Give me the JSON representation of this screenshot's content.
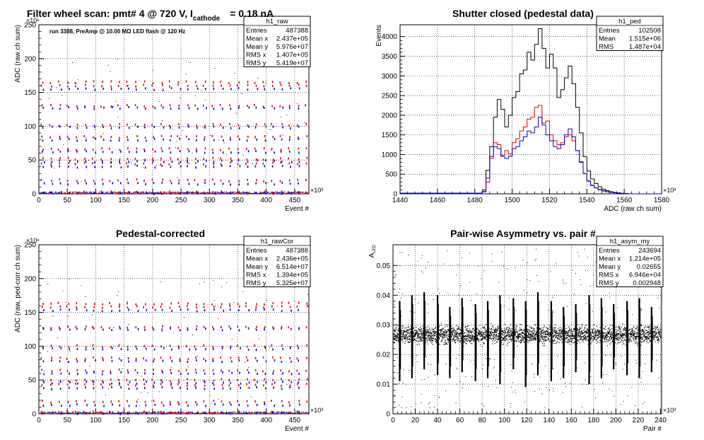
{
  "chart_data": [
    {
      "type": "scatter",
      "title": "Filter wheel scan: pmt#   4 @   720 V, I",
      "title_subscript": "cathode",
      "title_suffix": "= 0.18 nA",
      "annotation": "run 3388, PreAmp @ 10.00 MΩ LED flash @  120 Hz",
      "xlabel": "Event #",
      "ylabel": "ADC (raw ch sum)",
      "x_exponent": "×10³",
      "y_exponent": "×10⁶",
      "xlim": [
        0,
        475
      ],
      "ylim": [
        0,
        250
      ],
      "x_ticks": [
        0,
        50,
        100,
        150,
        200,
        250,
        300,
        350,
        400,
        450
      ],
      "y_ticks": [
        0,
        50,
        100,
        150,
        200,
        250
      ],
      "grid": true,
      "stats": {
        "name": "h1_raw",
        "rows": [
          [
            "Entries",
            "487388"
          ],
          [
            "Mean x",
            "2.437e+05"
          ],
          [
            "Mean y",
            "5.976e+07"
          ],
          [
            "RMS x",
            "1.407e+05"
          ],
          [
            "RMS y",
            "5.419e+07"
          ]
        ]
      },
      "marker_levels": {
        "red": [
          165,
          160,
          130,
          102,
          84,
          66,
          52,
          45,
          20,
          2
        ],
        "blue": [
          155,
          127,
          98,
          80,
          62,
          48,
          40,
          15,
          1
        ]
      },
      "colors": {
        "red": "#e00000",
        "blue": "#0000dd",
        "black": "#000000"
      }
    },
    {
      "type": "histogram",
      "title": "Shutter closed (pedestal data)",
      "xlabel": "ADC (raw ch sum)",
      "ylabel": "Events",
      "x_exponent": "×10³",
      "xlim": [
        1440,
        1580
      ],
      "ylim": [
        0,
        4300
      ],
      "x_ticks": [
        1440,
        1460,
        1480,
        1500,
        1520,
        1540,
        1560,
        1580
      ],
      "y_ticks": [
        0,
        500,
        1000,
        1500,
        2000,
        2500,
        3000,
        3500,
        4000
      ],
      "grid": true,
      "stats": {
        "name": "h1_ped",
        "rows": [
          [
            "Entries",
            "102508"
          ],
          [
            "Mean",
            "1.515e+06"
          ],
          [
            "RMS",
            "1.487e+04"
          ]
        ]
      },
      "series": [
        {
          "color": "#000000",
          "x": [
            1484,
            1486,
            1488,
            1490,
            1492,
            1494,
            1496,
            1498,
            1500,
            1502,
            1504,
            1506,
            1508,
            1510,
            1512,
            1514,
            1516,
            1518,
            1520,
            1522,
            1524,
            1526,
            1528,
            1530,
            1532,
            1534,
            1536,
            1538,
            1540,
            1542,
            1544,
            1546,
            1548,
            1550,
            1552,
            1554,
            1556,
            1558,
            1560
          ],
          "y": [
            100,
            600,
            1200,
            1950,
            2400,
            2150,
            1700,
            2000,
            2450,
            2600,
            3050,
            3150,
            3600,
            3400,
            3800,
            4200,
            3700,
            3200,
            3550,
            3200,
            2450,
            2650,
            2950,
            3250,
            2800,
            2200,
            1550,
            950,
            580,
            380,
            260,
            180,
            120,
            80,
            55,
            35,
            25,
            15,
            10
          ]
        },
        {
          "color": "#dd0000",
          "x": [
            1484,
            1486,
            1488,
            1490,
            1492,
            1494,
            1496,
            1498,
            1500,
            1502,
            1504,
            1506,
            1508,
            1510,
            1512,
            1514,
            1516,
            1518,
            1520,
            1522,
            1524,
            1526,
            1528,
            1530,
            1532,
            1534,
            1536,
            1538,
            1540,
            1542,
            1544,
            1546,
            1548,
            1550,
            1552,
            1554,
            1556,
            1558,
            1560
          ],
          "y": [
            60,
            300,
            900,
            1300,
            1250,
            980,
            1100,
            1020,
            1300,
            1400,
            1600,
            1700,
            1900,
            1950,
            2200,
            2250,
            1800,
            1850,
            1500,
            1350,
            1250,
            1300,
            1450,
            1500,
            1350,
            1100,
            820,
            520,
            320,
            210,
            150,
            100,
            70,
            50,
            35,
            25,
            18,
            10,
            5
          ]
        },
        {
          "color": "#0000cc",
          "x": [
            1484,
            1486,
            1488,
            1490,
            1492,
            1494,
            1496,
            1498,
            1500,
            1502,
            1504,
            1506,
            1508,
            1510,
            1512,
            1514,
            1516,
            1518,
            1520,
            1522,
            1524,
            1526,
            1528,
            1530,
            1532,
            1534,
            1536,
            1538,
            1540,
            1542,
            1544,
            1546,
            1548,
            1550,
            1552,
            1554,
            1556,
            1558,
            1560
          ],
          "y": [
            50,
            400,
            950,
            1200,
            1150,
            950,
            900,
            960,
            1150,
            1200,
            1350,
            1450,
            1600,
            1550,
            1700,
            1950,
            1750,
            1500,
            1350,
            1200,
            1150,
            1250,
            1500,
            1650,
            1450,
            1100,
            800,
            520,
            330,
            220,
            150,
            110,
            80,
            55,
            40,
            28,
            20,
            12,
            5
          ]
        }
      ]
    },
    {
      "type": "scatter",
      "title": "Pedestal-corrected",
      "xlabel": "Event #",
      "ylabel": "ADC (raw, ped-corr ch sum)",
      "x_exponent": "×10³",
      "y_exponent": "×10⁶",
      "xlim": [
        0,
        475
      ],
      "ylim": [
        0,
        250
      ],
      "x_ticks": [
        0,
        50,
        100,
        150,
        200,
        250,
        300,
        350,
        400,
        450
      ],
      "y_ticks": [
        0,
        50,
        100,
        150,
        200,
        250
      ],
      "grid": true,
      "stats": {
        "name": "h1_rawCor",
        "rows": [
          [
            "Entries",
            "487388"
          ],
          [
            "Mean x",
            "2.436e+05"
          ],
          [
            "Mean y",
            "6.514e+07"
          ],
          [
            "RMS x",
            "1.394e+05"
          ],
          [
            "RMS y",
            "5.325e+07"
          ]
        ]
      },
      "marker_levels": {
        "red": [
          163,
          158,
          128,
          100,
          82,
          64,
          50,
          43,
          18,
          2
        ],
        "blue": [
          153,
          125,
          96,
          78,
          60,
          46,
          38,
          13,
          1
        ]
      },
      "colors": {
        "red": "#e00000",
        "blue": "#0000dd",
        "black": "#000000"
      }
    },
    {
      "type": "scatter",
      "title": "Pair-wise Asymmetry vs. pair #",
      "xlabel": "Pair #",
      "ylabel": "A",
      "ylabel_subscript": "LED",
      "x_exponent": "×10³",
      "xlim": [
        0,
        241
      ],
      "ylim": [
        0,
        0.057
      ],
      "x_ticks": [
        0,
        20,
        40,
        60,
        80,
        100,
        120,
        140,
        160,
        180,
        200,
        220,
        240
      ],
      "y_ticks": [
        0,
        0.01,
        0.02,
        0.03,
        0.04,
        0.05
      ],
      "y_tick_labels": [
        "0",
        "0.01",
        "0.02",
        "0.03",
        "0.04",
        "0.05"
      ],
      "grid": true,
      "stats": {
        "name": "h1_asym_my",
        "rows": [
          [
            "Entries",
            "243694"
          ],
          [
            "Mean x",
            "1.214e+05"
          ],
          [
            "Mean y",
            "0.02655"
          ],
          [
            "RMS x",
            "6.946e+04"
          ],
          [
            "RMS y",
            "0.002948"
          ]
        ]
      },
      "band_center": 0.0268,
      "band_halfwidth": 0.0022,
      "spike_x": [
        6,
        17,
        28,
        40,
        51,
        62,
        74,
        85,
        96,
        108,
        119,
        130,
        142,
        153,
        164,
        176,
        187,
        198,
        210,
        221,
        232
      ],
      "spike_top": [
        0.038,
        0.04,
        0.041,
        0.04,
        0.036,
        0.039,
        0.037,
        0.038,
        0.04,
        0.039,
        0.038,
        0.041,
        0.038,
        0.036,
        0.037,
        0.04,
        0.039,
        0.037,
        0.038,
        0.039,
        0.036
      ],
      "spike_bottom": [
        0.011,
        0.012,
        0.015,
        0.013,
        0.012,
        0.014,
        0.011,
        0.012,
        0.01,
        0.015,
        0.009,
        0.013,
        0.011,
        0.012,
        0.014,
        0.01,
        0.012,
        0.015,
        0.013,
        0.012,
        0.014
      ],
      "colors": {
        "points": "#000000"
      }
    }
  ]
}
